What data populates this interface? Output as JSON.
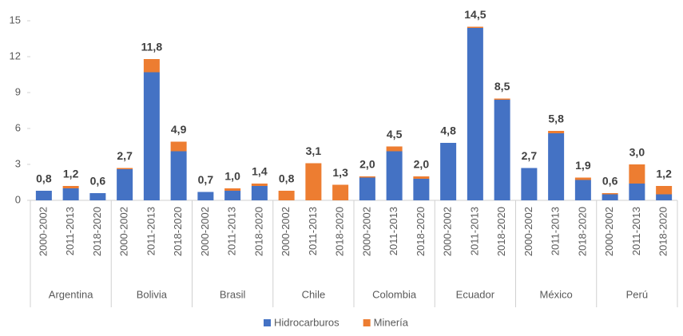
{
  "chart_data": {
    "type": "stacked_bar",
    "categories": [
      "2000-2002",
      "2011-2013",
      "2018-2020",
      "2000-2002",
      "2011-2013",
      "2018-2020",
      "2000-2002",
      "2011-2013",
      "2018-2020",
      "2000-2002",
      "2011-2013",
      "2018-2020",
      "2000-2002",
      "2011-2013",
      "2018-2020",
      "2000-2002",
      "2011-2013",
      "2018-2020",
      "2000-2002",
      "2011-2013",
      "2018-2020",
      "2000-2002",
      "2011-2013",
      "2018-2020"
    ],
    "groups": [
      "Argentina",
      "Bolivia",
      "Brasil",
      "Chile",
      "Colombia",
      "Ecuador",
      "México",
      "Perú"
    ],
    "series": [
      {
        "name": "Hidrocarburos",
        "color": "#4472c4",
        "values": [
          0.8,
          1.0,
          0.6,
          2.6,
          10.7,
          4.1,
          0.7,
          0.8,
          1.2,
          0,
          0,
          0,
          1.9,
          4.1,
          1.8,
          4.8,
          14.4,
          8.4,
          2.7,
          5.6,
          1.7,
          0.5,
          1.4,
          0.5
        ]
      },
      {
        "name": "Minería",
        "color": "#ed7d31",
        "values": [
          0,
          0.2,
          0,
          0.1,
          1.1,
          0.8,
          0,
          0.2,
          0.2,
          0.8,
          3.1,
          1.3,
          0.1,
          0.4,
          0.2,
          0,
          0.1,
          0.1,
          0,
          0.2,
          0.2,
          0.1,
          1.6,
          0.7
        ]
      }
    ],
    "totals": [
      0.8,
      1.2,
      0.6,
      2.7,
      11.8,
      4.9,
      0.7,
      1.0,
      1.4,
      0.8,
      3.1,
      1.3,
      2.0,
      4.5,
      2.0,
      4.8,
      14.5,
      8.5,
      2.7,
      5.8,
      1.9,
      0.6,
      3.0,
      1.2
    ],
    "total_labels": [
      "0,8",
      "1,2",
      "0,6",
      "2,7",
      "11,8",
      "4,9",
      "0,7",
      "1,0",
      "1,4",
      "0,8",
      "3,1",
      "1,3",
      "2,0",
      "4,5",
      "2,0",
      "4,8",
      "14,5",
      "8,5",
      "2,7",
      "5,8",
      "1,9",
      "0,6",
      "3,0",
      "1,2"
    ],
    "ylim": [
      0,
      15
    ],
    "yticks": [
      0,
      3,
      6,
      9,
      12,
      15
    ],
    "legend": "bottom"
  }
}
